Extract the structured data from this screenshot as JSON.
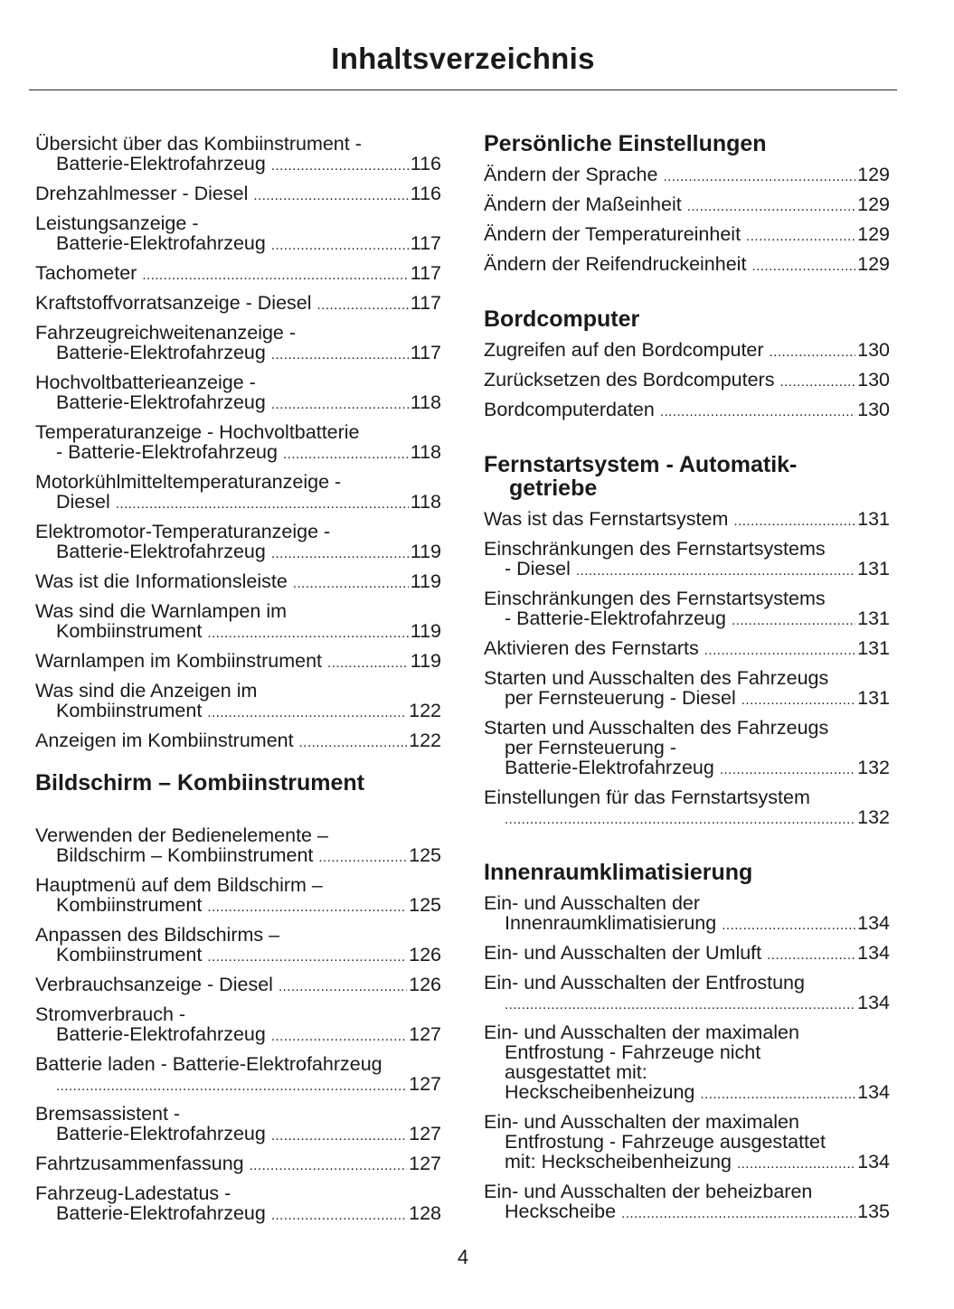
{
  "title": "Inhaltsverzeichnis",
  "page_number": "4",
  "left": [
    {
      "type": "entries",
      "items": [
        {
          "lines": [
            "Übersicht über das Kombiinstrument -",
            "Batterie-Elektrofahrzeug"
          ],
          "page": "116"
        },
        {
          "lines": [
            "Drehzahlmesser - Diesel"
          ],
          "page": "116"
        },
        {
          "lines": [
            "Leistungsanzeige -",
            "Batterie-Elektrofahrzeug"
          ],
          "page": "117"
        },
        {
          "lines": [
            "Tachometer"
          ],
          "page": "117"
        },
        {
          "lines": [
            "Kraftstoffvorratsanzeige - Diesel"
          ],
          "page": "117"
        },
        {
          "lines": [
            "Fahrzeugreichweitenanzeige -",
            "Batterie-Elektrofahrzeug"
          ],
          "page": "117"
        },
        {
          "lines": [
            "Hochvoltbatterieanzeige -",
            "Batterie-Elektrofahrzeug"
          ],
          "page": "118"
        },
        {
          "lines": [
            "Temperaturanzeige - Hochvoltbatterie",
            "- Batterie-Elektrofahrzeug"
          ],
          "page": "118"
        },
        {
          "lines": [
            "Motorkühlmitteltemperaturanzeige -",
            "Diesel"
          ],
          "page": "118"
        },
        {
          "lines": [
            "Elektromotor-Temperaturanzeige -",
            "Batterie-Elektrofahrzeug"
          ],
          "page": "119"
        },
        {
          "lines": [
            "Was ist die Informationsleiste"
          ],
          "page": "119"
        },
        {
          "lines": [
            "Was sind die Warnlampen im",
            "Kombiinstrument"
          ],
          "page": "119"
        },
        {
          "lines": [
            "Warnlampen im Kombiinstrument"
          ],
          "page": "119"
        },
        {
          "lines": [
            "Was sind die Anzeigen im",
            "Kombiinstrument"
          ],
          "page": "122"
        },
        {
          "lines": [
            "Anzeigen im Kombiinstrument"
          ],
          "page": "122"
        }
      ]
    },
    {
      "type": "heading",
      "lines": [
        "Bildschirm – Kombiinstrument"
      ],
      "big_gap": true
    },
    {
      "type": "entries",
      "items": [
        {
          "lines": [
            "Verwenden der Bedienelemente –",
            "Bildschirm – Kombiinstrument"
          ],
          "page": "125"
        },
        {
          "lines": [
            "Hauptmenü auf dem Bildschirm –",
            "Kombiinstrument"
          ],
          "page": "125"
        },
        {
          "lines": [
            "Anpassen des Bildschirms –",
            "Kombiinstrument"
          ],
          "page": "126"
        },
        {
          "lines": [
            "Verbrauchsanzeige - Diesel"
          ],
          "page": "126"
        },
        {
          "lines": [
            "Stromverbrauch -",
            "Batterie-Elektrofahrzeug"
          ],
          "page": "127"
        },
        {
          "lines": [
            "Batterie laden - Batterie-Elektrofahrzeug",
            ""
          ],
          "page": "127"
        },
        {
          "lines": [
            "Bremsassistent -",
            "Batterie-Elektrofahrzeug"
          ],
          "page": "127"
        },
        {
          "lines": [
            "Fahrtzusammenfassung"
          ],
          "page": "127"
        },
        {
          "lines": [
            "Fahrzeug-Ladestatus -",
            "Batterie-Elektrofahrzeug"
          ],
          "page": "128"
        }
      ]
    }
  ],
  "right": [
    {
      "type": "heading",
      "lines": [
        "Persönliche Einstellungen"
      ]
    },
    {
      "type": "entries",
      "items": [
        {
          "lines": [
            "Ändern der Sprache"
          ],
          "page": "129"
        },
        {
          "lines": [
            "Ändern der Maßeinheit"
          ],
          "page": "129"
        },
        {
          "lines": [
            "Ändern der Temperatureinheit"
          ],
          "page": "129"
        },
        {
          "lines": [
            "Ändern der Reifendruckeinheit"
          ],
          "page": "129"
        }
      ]
    },
    {
      "type": "heading",
      "lines": [
        "Bordcomputer"
      ]
    },
    {
      "type": "entries",
      "items": [
        {
          "lines": [
            "Zugreifen auf den Bordcomputer"
          ],
          "page": "130"
        },
        {
          "lines": [
            "Zurücksetzen des Bordcomputers"
          ],
          "page": "130"
        },
        {
          "lines": [
            "Bordcomputerdaten"
          ],
          "page": "130"
        }
      ]
    },
    {
      "type": "heading",
      "lines": [
        "Fernstartsystem - Automatik-",
        "getriebe"
      ]
    },
    {
      "type": "entries",
      "items": [
        {
          "lines": [
            "Was ist das Fernstartsystem"
          ],
          "page": "131"
        },
        {
          "lines": [
            "Einschränkungen des Fernstartsystems",
            "- Diesel"
          ],
          "page": "131"
        },
        {
          "lines": [
            "Einschränkungen des Fernstartsystems",
            "- Batterie-Elektrofahrzeug"
          ],
          "page": "131"
        },
        {
          "lines": [
            "Aktivieren des Fernstarts"
          ],
          "page": "131"
        },
        {
          "lines": [
            "Starten und Ausschalten des Fahrzeugs",
            "per Fernsteuerung - Diesel"
          ],
          "page": "131"
        },
        {
          "lines": [
            "Starten und Ausschalten des Fahrzeugs",
            "per Fernsteuerung -",
            "Batterie-Elektrofahrzeug"
          ],
          "page": "132"
        },
        {
          "lines": [
            "Einstellungen für das Fernstartsystem",
            ""
          ],
          "page": "132"
        }
      ]
    },
    {
      "type": "heading",
      "lines": [
        "Innenraumklimatisierung"
      ]
    },
    {
      "type": "entries",
      "items": [
        {
          "lines": [
            "Ein- und Ausschalten der",
            "Innenraumklimatisierung"
          ],
          "page": "134"
        },
        {
          "lines": [
            "Ein- und Ausschalten der Umluft"
          ],
          "page": "134"
        },
        {
          "lines": [
            "Ein- und Ausschalten der Entfrostung",
            ""
          ],
          "page": "134"
        },
        {
          "lines": [
            "Ein- und Ausschalten der maximalen",
            "Entfrostung - Fahrzeuge nicht",
            "ausgestattet mit:",
            "Heckscheibenheizung"
          ],
          "page": "134"
        },
        {
          "lines": [
            "Ein- und Ausschalten der maximalen",
            "Entfrostung - Fahrzeuge ausgestattet",
            "mit: Heckscheibenheizung"
          ],
          "page": "134"
        },
        {
          "lines": [
            "Ein- und Ausschalten der beheizbaren",
            "Heckscheibe"
          ],
          "page": "135"
        }
      ]
    }
  ]
}
